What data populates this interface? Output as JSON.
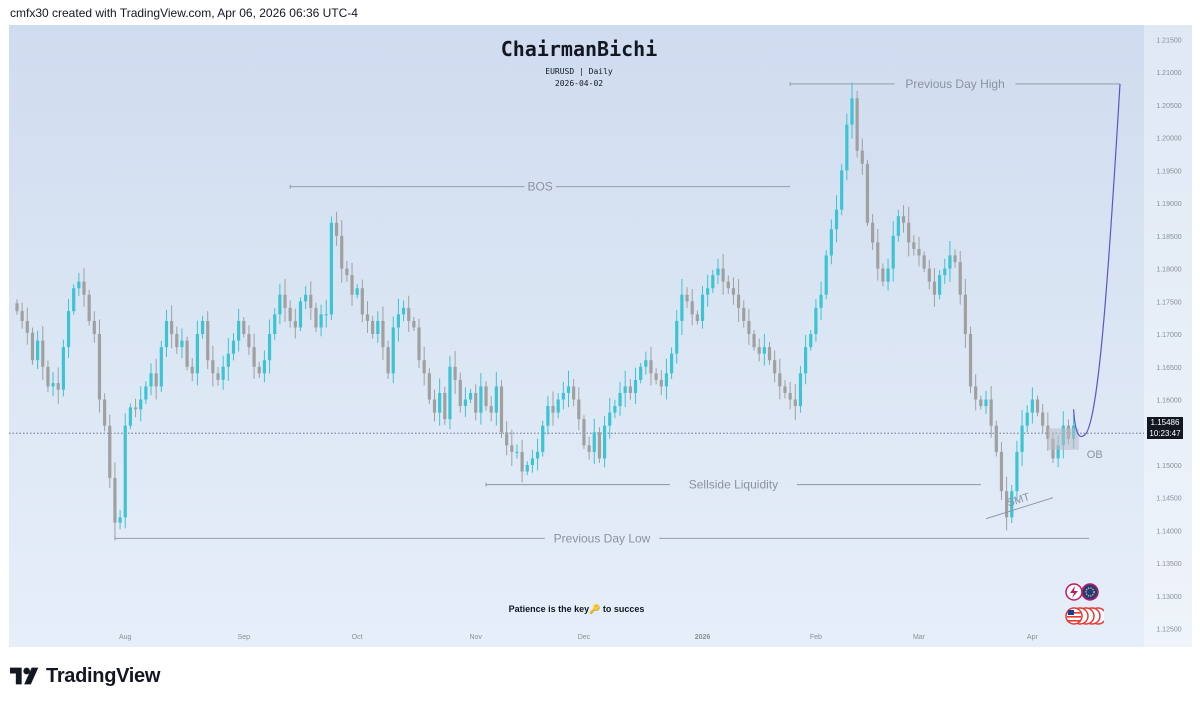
{
  "header": {
    "credit": "cmfx30 created with TradingView.com, Apr 06, 2026 06:36 UTC-4"
  },
  "footer": {
    "brand": "TradingView",
    "logo_icon": "tradingview-logo-icon"
  },
  "overlay": {
    "title": "ChairmanBichi",
    "symbol_line": "EURUSD | Daily",
    "date_line": "2026-04-02",
    "note": "Patience is the key🔑 to succes",
    "price_tag_value": "1.15486",
    "price_tag_countdown": "10:23:47"
  },
  "colors": {
    "bull": "#3cc4d4",
    "bear": "#a0a0a0",
    "annotation": "#8a929e",
    "projection": "#5b55c9"
  },
  "chart_data": {
    "type": "candlestick",
    "title": "",
    "symbol": "EURUSD",
    "timeframe": "Daily",
    "grid": false,
    "y_ticks": [
      "1.21500",
      "1.21000",
      "1.20500",
      "1.20000",
      "1.19500",
      "1.19000",
      "1.18500",
      "1.18000",
      "1.17500",
      "1.17000",
      "1.16500",
      "1.16000",
      "1.15500",
      "1.15000",
      "1.14500",
      "1.14000",
      "1.13500",
      "1.13000",
      "1.12500"
    ],
    "ylim": [
      1.1222,
      1.2172
    ],
    "x_ticks": [
      {
        "label": "Aug",
        "index": 21
      },
      {
        "label": "Sep",
        "index": 44
      },
      {
        "label": "Oct",
        "index": 66
      },
      {
        "label": "Nov",
        "index": 89
      },
      {
        "label": "Dec",
        "index": 110
      },
      {
        "label": "2026",
        "index": 133
      },
      {
        "label": "Feb",
        "index": 155
      },
      {
        "label": "Mar",
        "index": 175
      },
      {
        "label": "Apr",
        "index": 197
      }
    ],
    "last_price": 1.15486,
    "price_line": 1.15486,
    "annotations": [
      {
        "label": "Previous Day High",
        "price": 1.2082,
        "from_index": 150,
        "to_index": 214
      },
      {
        "label": "BOS",
        "price": 1.1925,
        "from_index": 53,
        "to_index": 150
      },
      {
        "label": "Sellside Liquidity",
        "price": 1.147,
        "from_index": 91,
        "to_index": 187
      },
      {
        "label": "Previous Day Low",
        "price": 1.1388,
        "from_index": 19,
        "to_index": 208
      },
      {
        "label": "OB",
        "price_top": 1.1556,
        "price_bottom": 1.1523,
        "from_index": 200,
        "to_index": 206
      },
      {
        "label": "SMT",
        "from_index": 188,
        "from_price": 1.1418,
        "to_index": 201,
        "to_price": 1.145
      }
    ],
    "projection": {
      "start": [
        205,
        1.1585
      ],
      "trough": [
        207,
        1.1545
      ],
      "end": [
        214,
        1.2082
      ]
    },
    "ohlc_close": [
      1.1735,
      1.172,
      1.1702,
      1.166,
      1.169,
      1.165,
      1.162,
      1.1625,
      1.1615,
      1.168,
      1.1735,
      1.177,
      1.178,
      1.176,
      1.172,
      1.17,
      1.16,
      1.156,
      1.148,
      1.1412,
      1.142,
      1.156,
      1.1588,
      1.1585,
      1.16,
      1.162,
      1.164,
      1.162,
      1.168,
      1.172,
      1.17,
      1.168,
      1.169,
      1.165,
      1.164,
      1.17,
      1.172,
      1.166,
      1.164,
      1.163,
      1.165,
      1.167,
      1.169,
      1.172,
      1.17,
      1.168,
      1.165,
      1.164,
      1.166,
      1.17,
      1.173,
      1.176,
      1.174,
      1.172,
      1.171,
      1.175,
      1.176,
      1.174,
      1.171,
      1.173,
      1.173,
      1.187,
      1.185,
      1.18,
      1.179,
      1.176,
      1.177,
      1.173,
      1.172,
      1.17,
      1.172,
      1.168,
      1.164,
      1.171,
      1.173,
      1.174,
      1.172,
      1.171,
      1.166,
      1.164,
      1.16,
      1.158,
      1.161,
      1.157,
      1.165,
      1.163,
      1.159,
      1.16,
      1.161,
      1.158,
      1.162,
      1.159,
      1.158,
      1.162,
      1.155,
      1.153,
      1.152,
      1.152,
      1.149,
      1.15,
      1.151,
      1.152,
      1.156,
      1.159,
      1.158,
      1.16,
      1.161,
      1.162,
      1.16,
      1.157,
      1.153,
      1.152,
      1.155,
      1.151,
      1.156,
      1.158,
      1.159,
      1.161,
      1.162,
      1.161,
      1.163,
      1.165,
      1.166,
      1.164,
      1.163,
      1.162,
      1.164,
      1.167,
      1.172,
      1.176,
      1.175,
      1.173,
      1.172,
      1.176,
      1.177,
      1.179,
      1.18,
      1.178,
      1.177,
      1.176,
      1.174,
      1.172,
      1.17,
      1.168,
      1.167,
      1.168,
      1.166,
      1.164,
      1.162,
      1.161,
      1.16,
      1.159,
      1.164,
      1.168,
      1.17,
      1.174,
      1.176,
      1.182,
      1.186,
      1.189,
      1.195,
      1.202,
      1.206,
      1.198,
      1.196,
      1.187,
      1.184,
      1.18,
      1.178,
      1.18,
      1.185,
      1.188,
      1.187,
      1.184,
      1.183,
      1.182,
      1.18,
      1.178,
      1.176,
      1.179,
      1.18,
      1.182,
      1.181,
      1.176,
      1.17,
      1.162,
      1.16,
      1.159,
      1.16,
      1.156,
      1.152,
      1.146,
      1.142,
      1.146,
      1.152,
      1.156,
      1.158,
      1.16,
      1.158,
      1.156,
      1.154,
      1.151,
      1.153,
      1.156,
      1.154,
      1.156
    ]
  }
}
